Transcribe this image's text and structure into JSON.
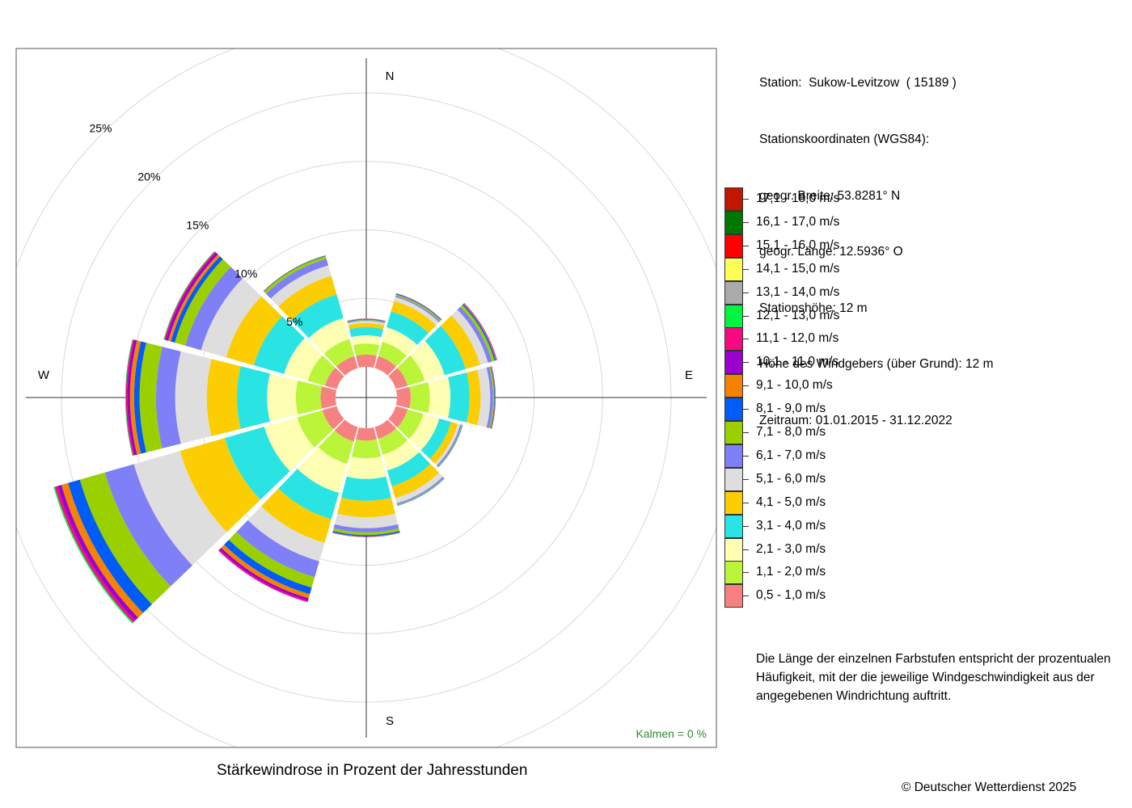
{
  "chart_data": {
    "type": "polar-bar",
    "directions": [
      {
        "label": "N",
        "angle": 0
      },
      {
        "label": "NNE",
        "angle": 30
      },
      {
        "label": "NE",
        "angle": 60
      },
      {
        "label": "E",
        "angle": 90
      },
      {
        "label": "ESE",
        "angle": 120
      },
      {
        "label": "SSE",
        "angle": 150
      },
      {
        "label": "S",
        "angle": 180
      },
      {
        "label": "SSW",
        "angle": 210
      },
      {
        "label": "SW",
        "angle": 240
      },
      {
        "label": "W",
        "angle": 270
      },
      {
        "label": "WNW",
        "angle": 300
      },
      {
        "label": "NNW",
        "angle": 330
      }
    ],
    "compass_labels": [
      "N",
      "E",
      "S",
      "W"
    ],
    "ring_labels": [
      "5%",
      "10%",
      "15%",
      "20%",
      "25%"
    ],
    "ring_values": [
      5,
      10,
      15,
      20,
      25
    ],
    "calm_label": "Kalmen  =  0 %",
    "speed_classes": [
      {
        "label": "0,5 - 1,0 m/s",
        "color": "#f78181"
      },
      {
        "label": "1,1 - 2,0 m/s",
        "color": "#bbf53a"
      },
      {
        "label": "2,1 - 3,0 m/s",
        "color": "#ffffb4"
      },
      {
        "label": "3,1 - 4,0 m/s",
        "color": "#2ae4e4"
      },
      {
        "label": "4,1 - 5,0 m/s",
        "color": "#fccd00"
      },
      {
        "label": "5,1 - 6,0 m/s",
        "color": "#dedede"
      },
      {
        "label": "6,1 - 7,0 m/s",
        "color": "#7f7ff7"
      },
      {
        "label": "7,1 - 8,0 m/s",
        "color": "#9ad000"
      },
      {
        "label": "8,1 - 9,0 m/s",
        "color": "#005cf7"
      },
      {
        "label": "9,1 - 10,0 m/s",
        "color": "#f78200"
      },
      {
        "label": "10,1 - 11,0 m/s",
        "color": "#9b00d0"
      },
      {
        "label": "11,1 - 12,0 m/s",
        "color": "#f70a7f"
      },
      {
        "label": "12,1 - 13,0 m/s",
        "color": "#00f540"
      },
      {
        "label": "13,1 - 14,0 m/s",
        "color": "#aaaaaa"
      },
      {
        "label": "14,1 - 15,0 m/s",
        "color": "#ffff55"
      },
      {
        "label": "15,1 - 16,0 m/s",
        "color": "#ff0000"
      },
      {
        "label": "16,1 - 17,0 m/s",
        "color": "#007800"
      },
      {
        "label": "17,1 - 18,0 m/s",
        "color": "#c01800"
      }
    ],
    "series": [
      {
        "direction": "N",
        "values": [
          0.9,
          0.8,
          0.6,
          0.6,
          0.3,
          0.15,
          0.05,
          0.05,
          0.05,
          0.02,
          0.01
        ]
      },
      {
        "direction": "NNE",
        "values": [
          0.9,
          1.1,
          1.1,
          1.2,
          0.8,
          0.3,
          0.1,
          0.1,
          0.05,
          0.02,
          0.02
        ]
      },
      {
        "direction": "NE",
        "values": [
          0.9,
          1.3,
          1.5,
          1.6,
          1.1,
          0.6,
          0.3,
          0.2,
          0.1,
          0.05,
          0.03,
          0.02
        ]
      },
      {
        "direction": "E",
        "values": [
          1.0,
          1.4,
          1.5,
          1.4,
          0.8,
          0.7,
          0.2,
          0.1,
          0.05,
          0.02,
          0.02,
          0.01
        ]
      },
      {
        "direction": "ESE",
        "values": [
          0.9,
          1.2,
          1.2,
          0.9,
          0.5,
          0.2,
          0.1,
          0.05,
          0.03
        ]
      },
      {
        "direction": "SSE",
        "values": [
          0.9,
          1.2,
          1.2,
          1.2,
          0.9,
          0.4,
          0.1,
          0.05,
          0.03
        ]
      },
      {
        "direction": "S",
        "values": [
          0.9,
          1.3,
          1.5,
          1.6,
          1.2,
          0.8,
          0.3,
          0.2,
          0.1,
          0.03,
          0.02
        ]
      },
      {
        "direction": "SSW",
        "values": [
          1.1,
          1.7,
          2.2,
          2.0,
          1.8,
          1.4,
          1.2,
          0.8,
          0.5,
          0.3,
          0.2,
          0.1
        ]
      },
      {
        "direction": "SW",
        "values": [
          1.1,
          1.9,
          2.5,
          3.0,
          3.4,
          3.5,
          2.2,
          1.9,
          0.9,
          0.5,
          0.3,
          0.2,
          0.1
        ]
      },
      {
        "direction": "W",
        "values": [
          1.1,
          1.8,
          2.1,
          2.2,
          2.2,
          2.3,
          1.4,
          1.2,
          0.4,
          0.3,
          0.2,
          0.1,
          0.05
        ]
      },
      {
        "direction": "WNW",
        "values": [
          0.9,
          1.3,
          1.8,
          2.3,
          2.1,
          1.9,
          1.2,
          0.8,
          0.3,
          0.2,
          0.2,
          0.1,
          0.05
        ]
      },
      {
        "direction": "NNW",
        "values": [
          0.9,
          1.3,
          1.6,
          1.8,
          1.4,
          0.8,
          0.5,
          0.2,
          0.05,
          0.02
        ]
      }
    ],
    "calm_percent": 0,
    "rmax_percent": 27,
    "grid": true,
    "legend_position": "right",
    "title": "Stärkewindrose in Prozent der Jahresstunden"
  },
  "station": {
    "line1": "Station:  Sukow-Levitzow  ( 15189 )",
    "line2": "Stationskoordinaten (WGS84):",
    "line3": "geogr. Breite: 53.8281° N",
    "line4": "geogr. Länge: 12.5936° O",
    "line5": "Stationshöhe: 12 m",
    "line6": "Höhe des Windgebers (über Grund): 12 m",
    "line7": "Zeitraum: 01.01.2015 - 31.12.2022"
  },
  "note": "Die Länge der einzelnen Farbstufen entspricht der prozentualen Häufigkeit, mit der die jeweilige Windgeschwindigkeit aus der angegebenen Windrichtung auftritt.",
  "caption": "Stärkewindrose in Prozent der Jahresstunden",
  "copyright": "© Deutscher Wetterdienst  2025"
}
